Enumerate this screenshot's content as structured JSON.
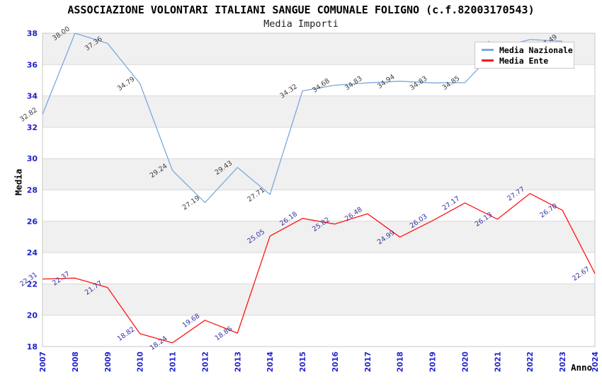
{
  "header": {
    "title": "ASSOCIAZIONE VOLONTARI ITALIANI SANGUE COMUNALE FOLIGNO (c.f.82003170543)",
    "subtitle": "Media Importi"
  },
  "axes": {
    "y_title": "Media",
    "x_title": "Anno",
    "y_ticks": [
      18,
      20,
      22,
      24,
      26,
      28,
      30,
      32,
      34,
      36,
      38
    ],
    "x_ticks": [
      "2007",
      "2008",
      "2009",
      "2010",
      "2011",
      "2012",
      "2013",
      "2014",
      "2015",
      "2016",
      "2017",
      "2018",
      "2019",
      "2020",
      "2021",
      "2022",
      "2023",
      "2024"
    ]
  },
  "legend": {
    "items": [
      {
        "label": "Media Nazionale",
        "color": "#7CA9DC"
      },
      {
        "label": "Media Ente",
        "color": "#FF1414"
      }
    ]
  },
  "colors": {
    "tick_label": "#2222CC",
    "grid_line": "#d9d9d9",
    "band_gray": "#f0f0f0",
    "band_white": "#ffffff",
    "plot_border": "#c9c9c9",
    "nazionale_line": "#7CA9DC",
    "ente_line": "#FF1414",
    "nazionale_label": "#3C3C3C",
    "ente_label": "#3333A0"
  },
  "chart_data": {
    "type": "line",
    "title": "ASSOCIAZIONE VOLONTARI ITALIANI SANGUE COMUNALE FOLIGNO (c.f.82003170543)",
    "subtitle": "Media Importi",
    "xlabel": "Anno",
    "ylabel": "Media",
    "x_range": [
      2007,
      2024
    ],
    "ylim": [
      18,
      38
    ],
    "grid": "horizontal-bands",
    "legend_position": "top-right-inside",
    "note": "Media Nazionale 2022 point label is occluded by the legend box in the source image; its value is estimated. Media Nazionale series has no 2024 point.",
    "series": [
      {
        "name": "Media Nazionale",
        "x": [
          2007,
          2008,
          2009,
          2010,
          2011,
          2012,
          2013,
          2014,
          2015,
          2016,
          2017,
          2018,
          2019,
          2020,
          2021,
          2022,
          2023
        ],
        "values": [
          32.82,
          38.0,
          37.36,
          34.79,
          29.24,
          27.19,
          29.43,
          27.71,
          34.32,
          34.68,
          34.83,
          34.94,
          34.83,
          34.85,
          37.05,
          37.6,
          37.49
        ],
        "labels": [
          "32.82",
          "38.00",
          "37.36",
          "34.79",
          "29.24",
          "27.19",
          "29.43",
          "27.71",
          "34.32",
          "34.68",
          "34.83",
          "34.94",
          "34.83",
          "34.85",
          "37.05",
          "",
          "37.49"
        ]
      },
      {
        "name": "Media Ente",
        "x": [
          2007,
          2008,
          2009,
          2010,
          2011,
          2012,
          2013,
          2014,
          2015,
          2016,
          2017,
          2018,
          2019,
          2020,
          2021,
          2022,
          2023,
          2024
        ],
        "values": [
          22.31,
          22.37,
          21.77,
          18.82,
          18.24,
          19.68,
          18.86,
          25.05,
          26.18,
          25.82,
          26.48,
          24.99,
          26.03,
          27.17,
          26.13,
          27.77,
          26.7,
          22.67
        ],
        "labels": [
          "22.31",
          "22.37",
          "21.77",
          "18.82",
          "18.24",
          "19.68",
          "18.86",
          "25.05",
          "26.18",
          "25.82",
          "26.48",
          "24.99",
          "26.03",
          "27.17",
          "26.13",
          "27.77",
          "26.70",
          "22.67"
        ]
      }
    ]
  }
}
